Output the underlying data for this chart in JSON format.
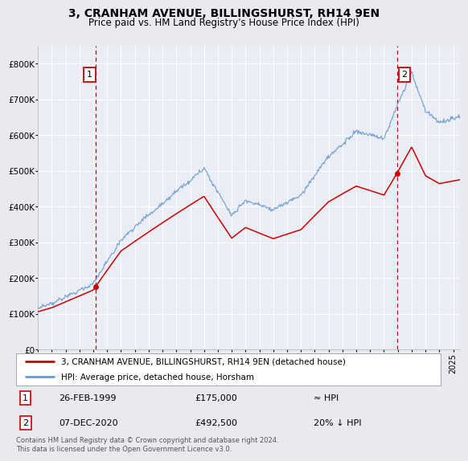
{
  "title": "3, CRANHAM AVENUE, BILLINGSHURST, RH14 9EN",
  "subtitle": "Price paid vs. HM Land Registry's House Price Index (HPI)",
  "legend_line1": "3, CRANHAM AVENUE, BILLINGSHURST, RH14 9EN (detached house)",
  "legend_line2": "HPI: Average price, detached house, Horsham",
  "annotation1_label": "1",
  "annotation1_date": "26-FEB-1999",
  "annotation1_price": "£175,000",
  "annotation1_hpi": "≈ HPI",
  "annotation2_label": "2",
  "annotation2_date": "07-DEC-2020",
  "annotation2_price": "£492,500",
  "annotation2_hpi": "20% ↓ HPI",
  "footer": "Contains HM Land Registry data © Crown copyright and database right 2024.\nThis data is licensed under the Open Government Licence v3.0.",
  "ylim": [
    0,
    850000
  ],
  "yticks": [
    0,
    100000,
    200000,
    300000,
    400000,
    500000,
    600000,
    700000,
    800000
  ],
  "ytick_labels": [
    "£0",
    "£100K",
    "£200K",
    "£300K",
    "£400K",
    "£500K",
    "£600K",
    "£700K",
    "£800K"
  ],
  "bg_color": "#e8eaf0",
  "plot_bg_color": "#eaedf5",
  "grid_color": "#ffffff",
  "hpi_line_color": "#6699cc",
  "price_line_color": "#cc0000",
  "anno_line_color": "#cc0000",
  "sale1_year": 1999.15,
  "sale1_price": 175000,
  "sale2_year": 2020.93,
  "sale2_price": 492500,
  "xlim_left": 1995.0,
  "xlim_right": 2025.5
}
